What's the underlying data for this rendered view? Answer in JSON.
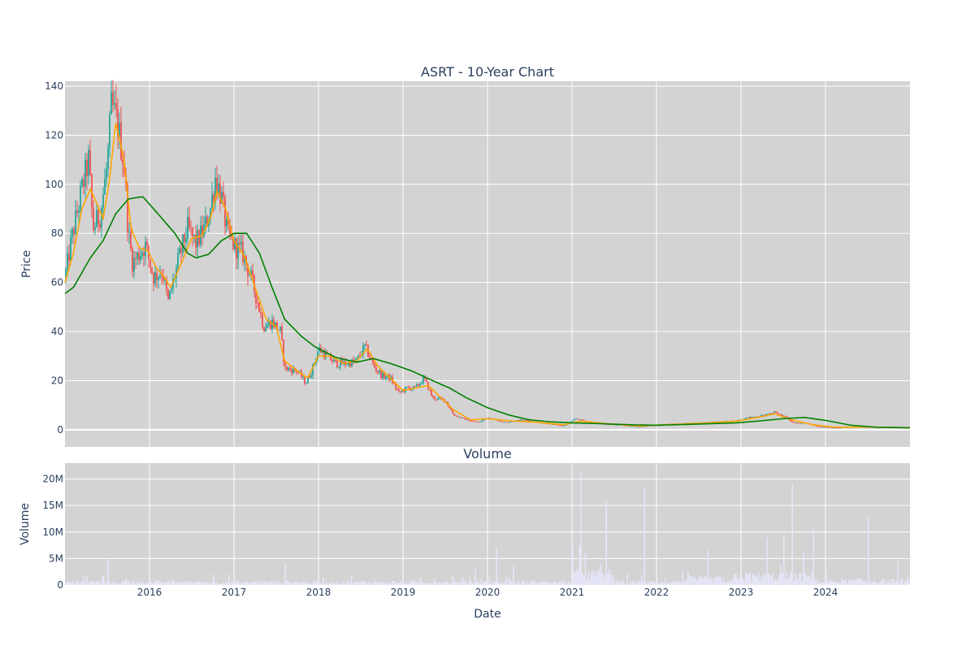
{
  "chart_data": [
    {
      "type": "candlestick",
      "title": "ASRT - 10-Year Chart",
      "xlabel": "",
      "ylabel": "Price",
      "ylim": [
        -7,
        142
      ],
      "yticks": [
        0,
        20,
        40,
        60,
        80,
        100,
        120,
        140
      ],
      "grid": true,
      "colors": {
        "up": "#26a69a",
        "down": "#ef5350",
        "ma_short": "#ffa500",
        "ma_long": "#008000",
        "background": "#d3d3d3",
        "grid": "#ffffff"
      },
      "price_path": [
        [
          2015.0,
          62
        ],
        [
          2015.08,
          78
        ],
        [
          2015.2,
          98
        ],
        [
          2015.28,
          110
        ],
        [
          2015.33,
          82
        ],
        [
          2015.42,
          88
        ],
        [
          2015.5,
          108
        ],
        [
          2015.55,
          132
        ],
        [
          2015.62,
          125
        ],
        [
          2015.7,
          108
        ],
        [
          2015.75,
          80
        ],
        [
          2015.8,
          68
        ],
        [
          2015.95,
          75
        ],
        [
          2016.05,
          62
        ],
        [
          2016.15,
          65
        ],
        [
          2016.22,
          52
        ],
        [
          2016.35,
          70
        ],
        [
          2016.45,
          82
        ],
        [
          2016.55,
          76
        ],
        [
          2016.65,
          82
        ],
        [
          2016.72,
          90
        ],
        [
          2016.78,
          103
        ],
        [
          2016.85,
          95
        ],
        [
          2016.92,
          80
        ],
        [
          2017.0,
          75
        ],
        [
          2017.1,
          72
        ],
        [
          2017.2,
          62
        ],
        [
          2017.28,
          52
        ],
        [
          2017.35,
          42
        ],
        [
          2017.45,
          44
        ],
        [
          2017.55,
          40
        ],
        [
          2017.6,
          25
        ],
        [
          2017.75,
          24
        ],
        [
          2017.85,
          19
        ],
        [
          2017.92,
          24
        ],
        [
          2018.0,
          33
        ],
        [
          2018.1,
          30
        ],
        [
          2018.2,
          27
        ],
        [
          2018.35,
          27
        ],
        [
          2018.45,
          28
        ],
        [
          2018.55,
          34
        ],
        [
          2018.65,
          26
        ],
        [
          2018.75,
          22
        ],
        [
          2018.85,
          21
        ],
        [
          2018.95,
          15
        ],
        [
          2019.05,
          17
        ],
        [
          2019.15,
          17
        ],
        [
          2019.25,
          21
        ],
        [
          2019.35,
          13
        ],
        [
          2019.5,
          12
        ],
        [
          2019.6,
          6
        ],
        [
          2019.75,
          4
        ],
        [
          2019.9,
          3
        ],
        [
          2020.0,
          5
        ],
        [
          2020.2,
          3
        ],
        [
          2020.4,
          4
        ],
        [
          2020.6,
          3
        ],
        [
          2020.9,
          1.5
        ],
        [
          2021.05,
          4.5
        ],
        [
          2021.2,
          3
        ],
        [
          2021.5,
          2
        ],
        [
          2021.8,
          1.2
        ],
        [
          2022.0,
          2
        ],
        [
          2022.3,
          2.5
        ],
        [
          2022.6,
          3
        ],
        [
          2022.9,
          3.5
        ],
        [
          2023.1,
          5
        ],
        [
          2023.3,
          6
        ],
        [
          2023.4,
          7
        ],
        [
          2023.55,
          5
        ],
        [
          2023.6,
          3
        ],
        [
          2023.8,
          2.5
        ],
        [
          2023.9,
          1.2
        ],
        [
          2024.1,
          0.8
        ],
        [
          2024.3,
          1
        ],
        [
          2024.6,
          1.2
        ],
        [
          2024.8,
          0.9
        ],
        [
          2025.0,
          0.8
        ]
      ],
      "ma_long_path": [
        [
          2015.0,
          55.5
        ],
        [
          2015.1,
          58
        ],
        [
          2015.3,
          70
        ],
        [
          2015.45,
          77
        ],
        [
          2015.6,
          88
        ],
        [
          2015.75,
          94
        ],
        [
          2015.92,
          95
        ],
        [
          2016.1,
          88
        ],
        [
          2016.3,
          80
        ],
        [
          2016.45,
          72
        ],
        [
          2016.55,
          70
        ],
        [
          2016.7,
          71.5
        ],
        [
          2016.85,
          77
        ],
        [
          2017.0,
          80
        ],
        [
          2017.15,
          80
        ],
        [
          2017.3,
          72
        ],
        [
          2017.45,
          58
        ],
        [
          2017.6,
          45
        ],
        [
          2017.8,
          38
        ],
        [
          2017.95,
          34
        ],
        [
          2018.2,
          29.5
        ],
        [
          2018.45,
          27.5
        ],
        [
          2018.65,
          29
        ],
        [
          2018.85,
          27
        ],
        [
          2019.1,
          24
        ],
        [
          2019.35,
          20
        ],
        [
          2019.55,
          17
        ],
        [
          2019.75,
          13
        ],
        [
          2020.0,
          9
        ],
        [
          2020.25,
          6
        ],
        [
          2020.5,
          4
        ],
        [
          2020.75,
          3.2
        ],
        [
          2021.0,
          2.8
        ],
        [
          2021.3,
          2.5
        ],
        [
          2021.7,
          2.0
        ],
        [
          2022.0,
          1.8
        ],
        [
          2022.5,
          2.3
        ],
        [
          2022.95,
          2.8
        ],
        [
          2023.2,
          3.5
        ],
        [
          2023.5,
          4.5
        ],
        [
          2023.75,
          5
        ],
        [
          2024.0,
          3.8
        ],
        [
          2024.3,
          1.8
        ],
        [
          2024.6,
          1.0
        ],
        [
          2025.0,
          0.8
        ]
      ],
      "ma_short_path": [
        [
          2015.0,
          60
        ],
        [
          2015.1,
          72
        ],
        [
          2015.2,
          90
        ],
        [
          2015.3,
          98
        ],
        [
          2015.38,
          92
        ],
        [
          2015.45,
          86
        ],
        [
          2015.52,
          100
        ],
        [
          2015.6,
          125
        ],
        [
          2015.7,
          110
        ],
        [
          2015.78,
          82
        ],
        [
          2015.88,
          74
        ],
        [
          2015.98,
          73
        ],
        [
          2016.08,
          66
        ],
        [
          2016.18,
          62
        ],
        [
          2016.25,
          58
        ],
        [
          2016.38,
          68
        ],
        [
          2016.5,
          78
        ],
        [
          2016.62,
          79
        ],
        [
          2016.72,
          86
        ],
        [
          2016.8,
          97
        ],
        [
          2016.9,
          90
        ],
        [
          2017.0,
          77
        ],
        [
          2017.12,
          71
        ],
        [
          2017.25,
          58
        ],
        [
          2017.38,
          45
        ],
        [
          2017.5,
          42
        ],
        [
          2017.6,
          28
        ],
        [
          2017.75,
          24
        ],
        [
          2017.87,
          21
        ],
        [
          2018.0,
          30
        ],
        [
          2018.15,
          30
        ],
        [
          2018.3,
          27
        ],
        [
          2018.45,
          28
        ],
        [
          2018.58,
          33
        ],
        [
          2018.7,
          26
        ],
        [
          2018.85,
          21
        ],
        [
          2019.0,
          16
        ],
        [
          2019.15,
          17
        ],
        [
          2019.3,
          18
        ],
        [
          2019.45,
          13
        ],
        [
          2019.6,
          8
        ],
        [
          2019.8,
          4
        ],
        [
          2020.0,
          4.5
        ],
        [
          2020.3,
          3.5
        ],
        [
          2020.6,
          3
        ],
        [
          2020.9,
          2
        ],
        [
          2021.1,
          3.5
        ],
        [
          2021.4,
          2.5
        ],
        [
          2021.8,
          1.5
        ],
        [
          2022.2,
          2.2
        ],
        [
          2022.6,
          2.8
        ],
        [
          2022.95,
          3.5
        ],
        [
          2023.2,
          5
        ],
        [
          2023.4,
          6.5
        ],
        [
          2023.6,
          4
        ],
        [
          2023.85,
          2
        ],
        [
          2024.1,
          1
        ],
        [
          2024.5,
          1.1
        ],
        [
          2025.0,
          0.8
        ]
      ]
    },
    {
      "type": "bar",
      "title": "Volume",
      "xlabel": "Date",
      "ylabel": "Volume",
      "ylim": [
        0,
        23000000
      ],
      "ytick_values": [
        0,
        5000000,
        10000000,
        15000000,
        20000000
      ],
      "ytick_labels": [
        "0",
        "5M",
        "10M",
        "15M",
        "20M"
      ],
      "xlim": [
        2015.0,
        2025.0
      ],
      "xtick_values": [
        2016,
        2017,
        2018,
        2019,
        2020,
        2021,
        2022,
        2023,
        2024
      ],
      "xtick_labels": [
        "2016",
        "2017",
        "2018",
        "2019",
        "2020",
        "2021",
        "2022",
        "2023",
        "2024"
      ],
      "grid": true,
      "colors": {
        "bar": "#e6e6fa",
        "background": "#d3d3d3",
        "grid": "#ffffff"
      },
      "spikes": [
        [
          2015.5,
          4800000
        ],
        [
          2016.75,
          2000000
        ],
        [
          2017.6,
          4200000
        ],
        [
          2019.85,
          3000000
        ],
        [
          2020.1,
          7000000
        ],
        [
          2020.3,
          3500000
        ],
        [
          2021.0,
          7500000
        ],
        [
          2021.1,
          21500000
        ],
        [
          2021.15,
          6000000
        ],
        [
          2021.4,
          16000000
        ],
        [
          2021.85,
          18500000
        ],
        [
          2022.6,
          6500000
        ],
        [
          2023.3,
          9000000
        ],
        [
          2023.5,
          9500000
        ],
        [
          2023.6,
          19000000
        ],
        [
          2023.85,
          11000000
        ],
        [
          2024.5,
          13000000
        ],
        [
          2024.85,
          4500000
        ]
      ]
    }
  ]
}
